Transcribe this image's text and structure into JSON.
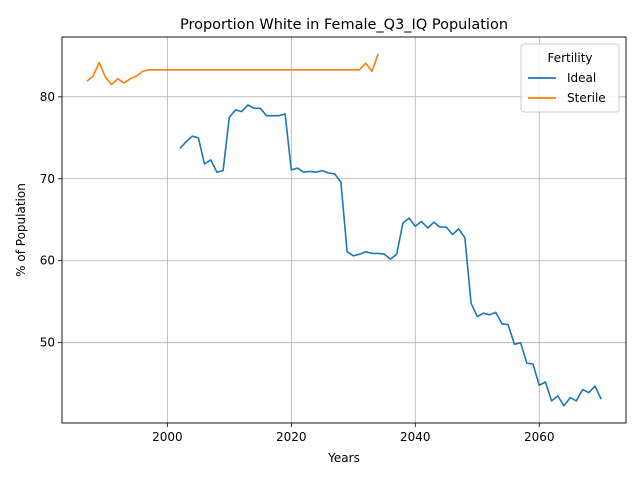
{
  "chart_data": {
    "type": "line",
    "title": "Proportion White in Female_Q3_IQ Population",
    "xlabel": "Years",
    "ylabel": "% of Population",
    "xlim": [
      1983,
      2074
    ],
    "ylim": [
      40.2,
      87.3
    ],
    "xticks": [
      2000,
      2020,
      2040,
      2060
    ],
    "yticks": [
      50,
      60,
      70,
      80
    ],
    "grid": true,
    "legend": {
      "title": "Fertility",
      "placement": "top-right"
    },
    "series": [
      {
        "name": "Ideal",
        "color": "#1f77b4",
        "points": [
          [
            2002,
            73.7
          ],
          [
            2003,
            74.5
          ],
          [
            2004,
            75.2
          ],
          [
            2005,
            75.0
          ],
          [
            2006,
            71.8
          ],
          [
            2007,
            72.3
          ],
          [
            2008,
            70.8
          ],
          [
            2009,
            71.0
          ],
          [
            2010,
            77.5
          ],
          [
            2011,
            78.4
          ],
          [
            2012,
            78.2
          ],
          [
            2013,
            79.0
          ],
          [
            2014,
            78.6
          ],
          [
            2015,
            78.6
          ],
          [
            2016,
            77.7
          ],
          [
            2017,
            77.7
          ],
          [
            2018,
            77.7
          ],
          [
            2019,
            77.9
          ],
          [
            2020,
            71.1
          ],
          [
            2021,
            71.3
          ],
          [
            2022,
            70.8
          ],
          [
            2023,
            70.9
          ],
          [
            2024,
            70.8
          ],
          [
            2025,
            71.0
          ],
          [
            2026,
            70.7
          ],
          [
            2027,
            70.6
          ],
          [
            2028,
            69.6
          ],
          [
            2029,
            61.1
          ],
          [
            2030,
            60.6
          ],
          [
            2031,
            60.8
          ],
          [
            2032,
            61.1
          ],
          [
            2033,
            60.9
          ],
          [
            2034,
            60.9
          ],
          [
            2035,
            60.8
          ],
          [
            2036,
            60.2
          ],
          [
            2037,
            60.8
          ],
          [
            2038,
            64.6
          ],
          [
            2039,
            65.2
          ],
          [
            2040,
            64.2
          ],
          [
            2041,
            64.8
          ],
          [
            2042,
            64.0
          ],
          [
            2043,
            64.7
          ],
          [
            2044,
            64.1
          ],
          [
            2045,
            64.1
          ],
          [
            2046,
            63.2
          ],
          [
            2047,
            63.9
          ],
          [
            2048,
            62.8
          ],
          [
            2049,
            54.8
          ],
          [
            2050,
            53.2
          ],
          [
            2051,
            53.6
          ],
          [
            2052,
            53.4
          ],
          [
            2053,
            53.7
          ],
          [
            2054,
            52.3
          ],
          [
            2055,
            52.2
          ],
          [
            2056,
            49.8
          ],
          [
            2057,
            50.0
          ],
          [
            2058,
            47.5
          ],
          [
            2059,
            47.4
          ],
          [
            2060,
            44.8
          ],
          [
            2061,
            45.2
          ],
          [
            2062,
            42.9
          ],
          [
            2063,
            43.5
          ],
          [
            2064,
            42.3
          ],
          [
            2065,
            43.3
          ],
          [
            2066,
            42.9
          ],
          [
            2067,
            44.3
          ],
          [
            2068,
            43.9
          ],
          [
            2069,
            44.7
          ],
          [
            2070,
            43.1
          ]
        ]
      },
      {
        "name": "Sterile",
        "color": "#ff7f0e",
        "points": [
          [
            1987,
            81.9
          ],
          [
            1988,
            82.5
          ],
          [
            1989,
            84.2
          ],
          [
            1990,
            82.4
          ],
          [
            1991,
            81.5
          ],
          [
            1992,
            82.2
          ],
          [
            1993,
            81.7
          ],
          [
            1994,
            82.2
          ],
          [
            1995,
            82.5
          ],
          [
            1996,
            83.1
          ],
          [
            1997,
            83.3
          ],
          [
            1998,
            83.3
          ],
          [
            2000,
            83.3
          ],
          [
            2010,
            83.3
          ],
          [
            2020,
            83.3
          ],
          [
            2030,
            83.3
          ],
          [
            2031,
            83.3
          ],
          [
            2032,
            84.1
          ],
          [
            2033,
            83.1
          ],
          [
            2034,
            85.2
          ]
        ]
      }
    ]
  }
}
